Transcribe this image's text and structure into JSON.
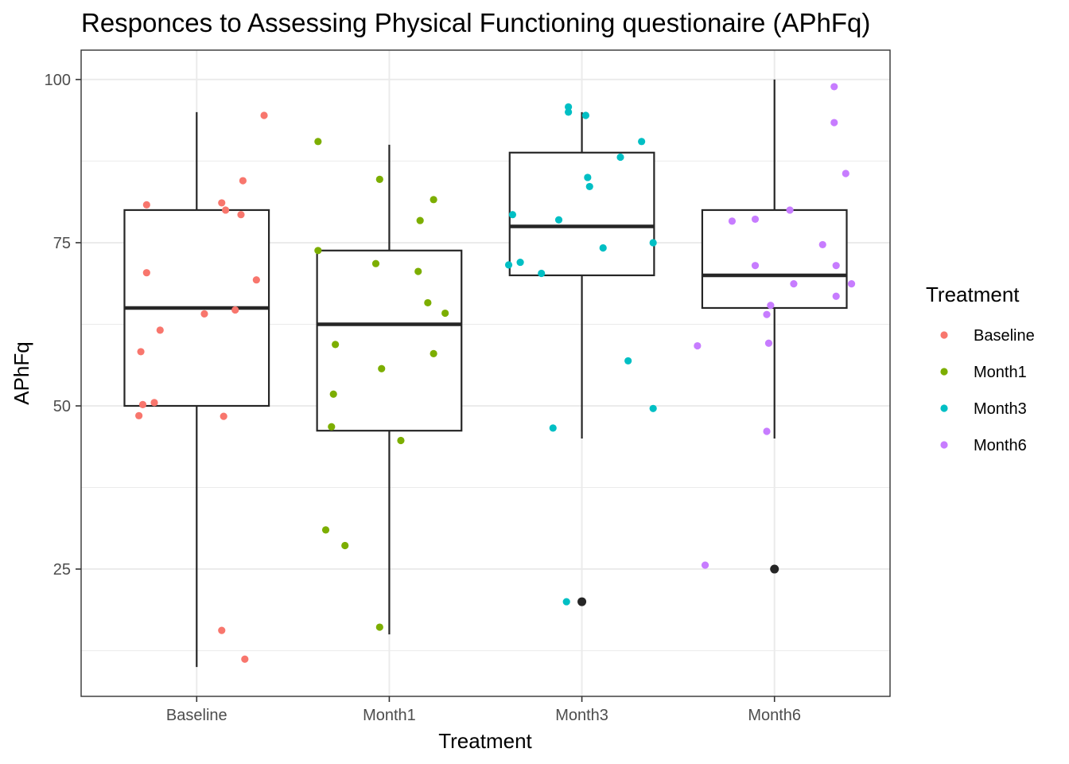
{
  "chart_data": {
    "type": "boxplot",
    "title": "Responces to Assessing Physical Functioning questionaire (APhFq)",
    "xlabel": "Treatment",
    "ylabel": "APhFq",
    "ylim": [
      5.5,
      104.5
    ],
    "yticks": [
      25,
      50,
      75,
      100
    ],
    "grid": true,
    "legend": {
      "title": "Treatment",
      "position": "right"
    },
    "categories": [
      "Baseline",
      "Month1",
      "Month3",
      "Month6"
    ],
    "colors": {
      "Baseline": "#F8766D",
      "Month1": "#7CAE00",
      "Month3": "#00BFC4",
      "Month6": "#C77CFF",
      "box": "#262626",
      "outlier": "#262626"
    },
    "series": [
      {
        "name": "Baseline",
        "box": {
          "min": 10,
          "q1": 50,
          "median": 65,
          "q3": 80,
          "max": 95
        },
        "outliers": [],
        "points": [
          {
            "x": 0.7,
            "y": 48.5
          },
          {
            "x": 0.72,
            "y": 50.2
          },
          {
            "x": 0.78,
            "y": 50.5
          },
          {
            "x": 0.71,
            "y": 58.3
          },
          {
            "x": 0.81,
            "y": 61.6
          },
          {
            "x": 0.74,
            "y": 70.4
          },
          {
            "x": 0.74,
            "y": 80.8
          },
          {
            "x": 1.04,
            "y": 64.1
          },
          {
            "x": 1.2,
            "y": 64.7
          },
          {
            "x": 1.13,
            "y": 81.1
          },
          {
            "x": 1.15,
            "y": 80.0
          },
          {
            "x": 1.23,
            "y": 79.3
          },
          {
            "x": 1.24,
            "y": 84.5
          },
          {
            "x": 1.31,
            "y": 69.3
          },
          {
            "x": 1.35,
            "y": 94.5
          },
          {
            "x": 1.14,
            "y": 48.4
          },
          {
            "x": 1.13,
            "y": 15.6
          },
          {
            "x": 1.25,
            "y": 11.2
          }
        ]
      },
      {
        "name": "Month1",
        "box": {
          "min": 15,
          "q1": 46.2,
          "median": 62.5,
          "q3": 73.8,
          "max": 90
        },
        "outliers": [],
        "points": [
          {
            "x": 1.63,
            "y": 90.5
          },
          {
            "x": 1.63,
            "y": 73.8
          },
          {
            "x": 1.72,
            "y": 59.4
          },
          {
            "x": 1.71,
            "y": 51.8
          },
          {
            "x": 1.7,
            "y": 46.8
          },
          {
            "x": 1.67,
            "y": 31.0
          },
          {
            "x": 1.77,
            "y": 28.6
          },
          {
            "x": 1.93,
            "y": 71.8
          },
          {
            "x": 1.95,
            "y": 84.7
          },
          {
            "x": 1.96,
            "y": 55.7
          },
          {
            "x": 1.95,
            "y": 16.1
          },
          {
            "x": 2.06,
            "y": 44.7
          },
          {
            "x": 2.16,
            "y": 78.4
          },
          {
            "x": 2.15,
            "y": 70.6
          },
          {
            "x": 2.2,
            "y": 65.8
          },
          {
            "x": 2.23,
            "y": 58.0
          },
          {
            "x": 2.23,
            "y": 81.6
          },
          {
            "x": 2.29,
            "y": 64.2
          }
        ]
      },
      {
        "name": "Month3",
        "box": {
          "min": 45,
          "q1": 70,
          "median": 77.5,
          "q3": 88.8,
          "max": 95
        },
        "outliers": [
          20
        ],
        "points": [
          {
            "x": 2.62,
            "y": 71.6
          },
          {
            "x": 2.64,
            "y": 79.3
          },
          {
            "x": 2.68,
            "y": 72.0
          },
          {
            "x": 2.79,
            "y": 70.3
          },
          {
            "x": 2.85,
            "y": 46.6
          },
          {
            "x": 2.88,
            "y": 78.5
          },
          {
            "x": 2.92,
            "y": 20.0
          },
          {
            "x": 2.93,
            "y": 95.0
          },
          {
            "x": 2.93,
            "y": 95.8
          },
          {
            "x": 3.02,
            "y": 94.5
          },
          {
            "x": 3.03,
            "y": 85.0
          },
          {
            "x": 3.04,
            "y": 83.6
          },
          {
            "x": 3.11,
            "y": 74.2
          },
          {
            "x": 3.24,
            "y": 56.9
          },
          {
            "x": 3.2,
            "y": 88.1
          },
          {
            "x": 3.31,
            "y": 90.5
          },
          {
            "x": 3.37,
            "y": 49.6
          },
          {
            "x": 3.37,
            "y": 75.0
          }
        ]
      },
      {
        "name": "Month6",
        "box": {
          "min": 45,
          "q1": 65,
          "median": 70,
          "q3": 80,
          "max": 100
        },
        "outliers": [
          25
        ],
        "points": [
          {
            "x": 3.6,
            "y": 59.2
          },
          {
            "x": 3.64,
            "y": 25.6
          },
          {
            "x": 3.78,
            "y": 78.3
          },
          {
            "x": 3.9,
            "y": 78.6
          },
          {
            "x": 3.9,
            "y": 71.5
          },
          {
            "x": 3.96,
            "y": 64.0
          },
          {
            "x": 3.96,
            "y": 46.1
          },
          {
            "x": 3.97,
            "y": 59.6
          },
          {
            "x": 3.98,
            "y": 65.4
          },
          {
            "x": 4.08,
            "y": 80.0
          },
          {
            "x": 4.1,
            "y": 68.7
          },
          {
            "x": 4.25,
            "y": 74.7
          },
          {
            "x": 4.31,
            "y": 98.9
          },
          {
            "x": 4.31,
            "y": 93.4
          },
          {
            "x": 4.32,
            "y": 71.5
          },
          {
            "x": 4.32,
            "y": 66.8
          },
          {
            "x": 4.37,
            "y": 85.6
          },
          {
            "x": 4.4,
            "y": 68.7
          }
        ]
      }
    ]
  }
}
